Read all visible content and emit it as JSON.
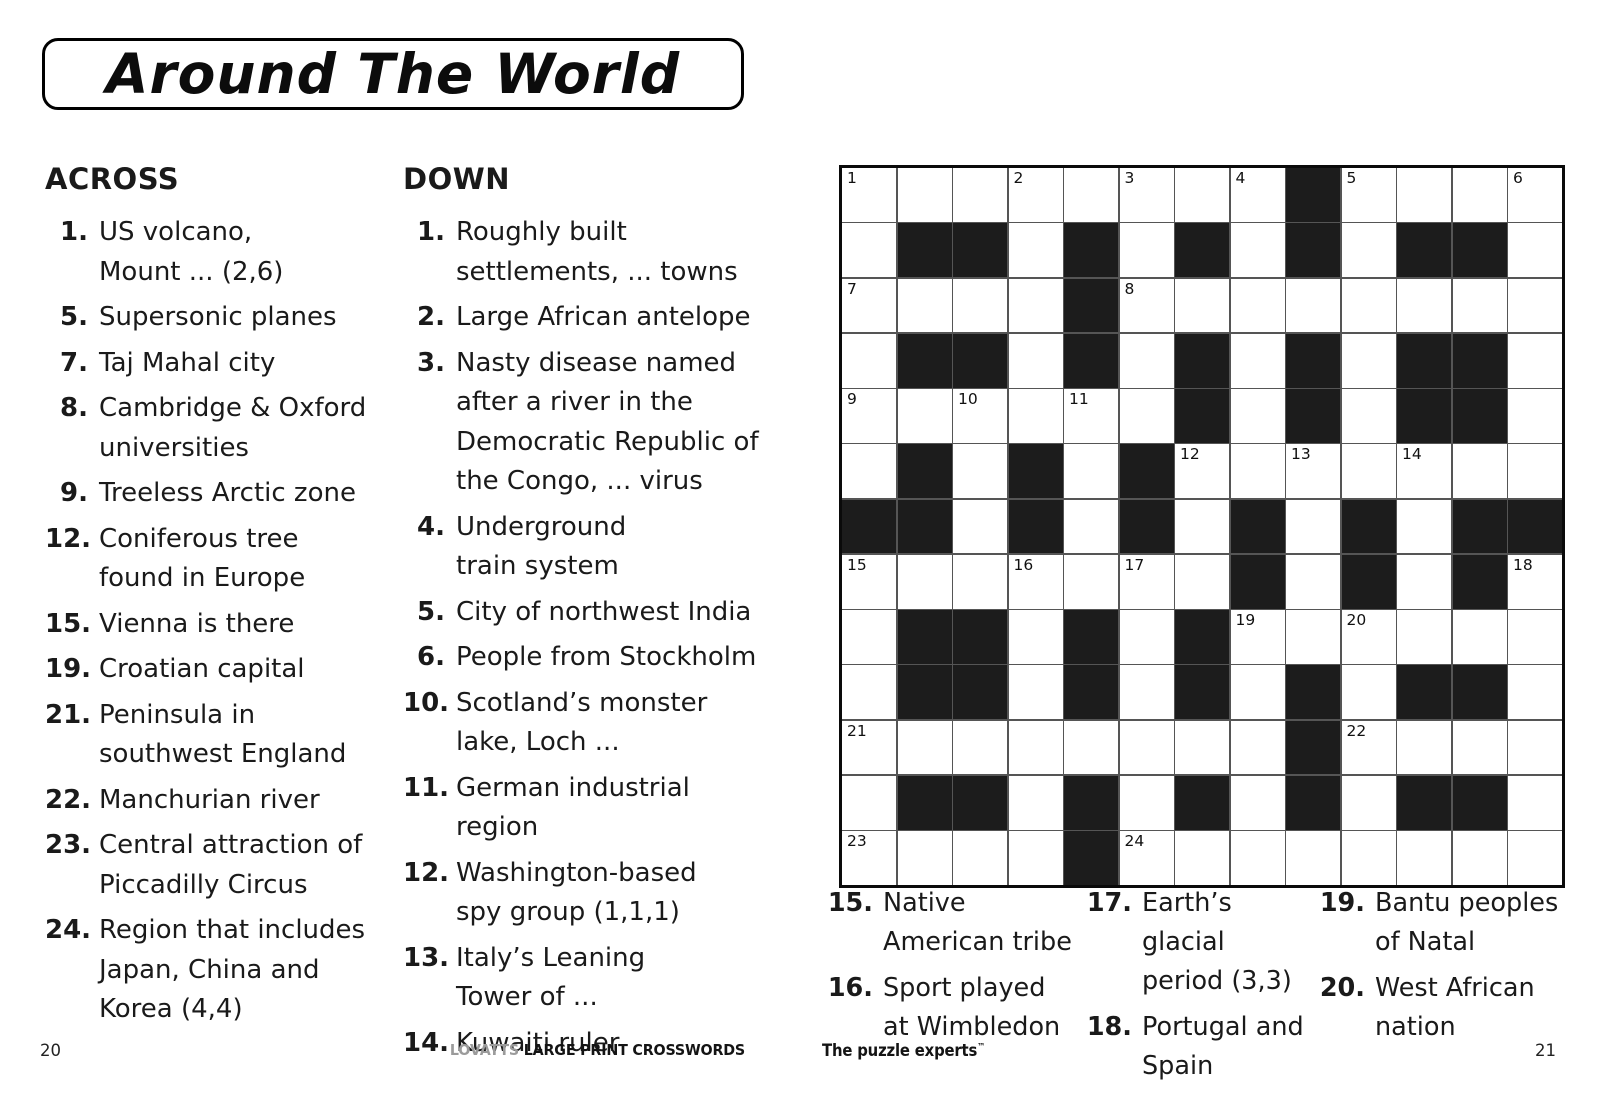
{
  "title": "Around The World",
  "across": {
    "heading": "ACROSS",
    "clues": [
      {
        "num": "1.",
        "lines": [
          "US volcano,",
          "Mount ... (2,6)"
        ]
      },
      {
        "num": "5.",
        "lines": [
          "Supersonic planes"
        ]
      },
      {
        "num": "7.",
        "lines": [
          "Taj Mahal city"
        ]
      },
      {
        "num": "8.",
        "lines": [
          "Cambridge & Oxford",
          "universities"
        ]
      },
      {
        "num": "9.",
        "lines": [
          "Treeless Arctic zone"
        ]
      },
      {
        "num": "12.",
        "lines": [
          "Coniferous tree",
          "found in Europe"
        ]
      },
      {
        "num": "15.",
        "lines": [
          "Vienna is there"
        ]
      },
      {
        "num": "19.",
        "lines": [
          "Croatian capital"
        ]
      },
      {
        "num": "21.",
        "lines": [
          "Peninsula in",
          "southwest England"
        ]
      },
      {
        "num": "22.",
        "lines": [
          "Manchurian river"
        ]
      },
      {
        "num": "23.",
        "lines": [
          "Central attraction of",
          "Piccadilly Circus"
        ]
      },
      {
        "num": "24.",
        "lines": [
          "Region that includes",
          "Japan, China and",
          "Korea (4,4)"
        ]
      }
    ]
  },
  "down": {
    "heading": "DOWN",
    "clues": [
      {
        "num": "1.",
        "lines": [
          "Roughly built",
          "settlements, ... towns"
        ]
      },
      {
        "num": "2.",
        "lines": [
          "Large African antelope"
        ]
      },
      {
        "num": "3.",
        "lines": [
          "Nasty disease named",
          "after a river in the",
          "Democratic Republic of",
          "the Congo, ... virus"
        ]
      },
      {
        "num": "4.",
        "lines": [
          "Underground",
          "train system"
        ]
      },
      {
        "num": "5.",
        "lines": [
          "City of northwest India"
        ]
      },
      {
        "num": "6.",
        "lines": [
          "People from Stockholm"
        ]
      },
      {
        "num": "10.",
        "lines": [
          "Scotland’s monster",
          "lake, Loch ..."
        ]
      },
      {
        "num": "11.",
        "lines": [
          "German industrial",
          "region"
        ]
      },
      {
        "num": "12.",
        "lines": [
          "Washington-based",
          "spy group (1,1,1)"
        ]
      },
      {
        "num": "13.",
        "lines": [
          "Italy’s Leaning",
          "Tower of ..."
        ]
      },
      {
        "num": "14.",
        "lines": [
          "Kuwaiti ruler"
        ]
      }
    ]
  },
  "bottom_clues": {
    "columns": [
      {
        "clues": [
          {
            "num": "15.",
            "lines": [
              "Native",
              "American tribe"
            ]
          },
          {
            "num": "16.",
            "lines": [
              "Sport played",
              "at Wimbledon"
            ]
          }
        ]
      },
      {
        "clues": [
          {
            "num": "17.",
            "lines": [
              "Earth’s glacial",
              "period (3,3)"
            ]
          },
          {
            "num": "18.",
            "lines": [
              "Portugal and",
              "Spain"
            ]
          }
        ]
      },
      {
        "clues": [
          {
            "num": "19.",
            "lines": [
              "Bantu peoples",
              "of Natal"
            ]
          },
          {
            "num": "20.",
            "lines": [
              "West African",
              "nation"
            ]
          }
        ]
      }
    ]
  },
  "grid": {
    "rows": 13,
    "cols": 13,
    "black_color": "#1c1c1c",
    "cells": [
      "........#....",
      ".##.#.#.#.##.",
      "....#........",
      ".##.#.#.#.##.",
      "......#.#.##.",
      ".#.#.#.......",
      "##.#.#.#.#.##",
      ".......#.#.#.",
      ".##.#.#......",
      ".##.#.#.#.##.",
      "........#....",
      ".##.#.#.#.##.",
      "....#........"
    ],
    "numbers": {
      "1,1": "1",
      "1,4": "2",
      "1,6": "3",
      "1,8": "4",
      "1,10": "5",
      "1,13": "6",
      "3,1": "7",
      "3,6": "8",
      "5,1": "9",
      "5,3": "10",
      "5,5": "11",
      "6,7": "12",
      "6,9": "13",
      "6,11": "14",
      "8,1": "15",
      "8,4": "16",
      "8,6": "17",
      "8,13": "18",
      "9,8": "19",
      "9,10": "20",
      "11,1": "21",
      "11,10": "22",
      "13,1": "23",
      "13,6": "24"
    }
  },
  "footer": {
    "page_left": "20",
    "brand_light": "LOVATTS",
    "brand_bold": "LARGE PRINT CROSSWORDS",
    "tagline": "The puzzle experts",
    "tagline_tm": "™",
    "page_right": "21"
  }
}
